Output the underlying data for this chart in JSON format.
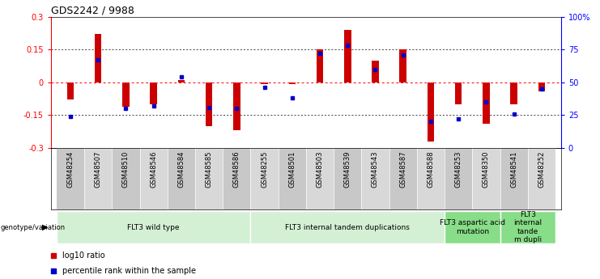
{
  "title": "GDS2242 / 9988",
  "samples": [
    "GSM48254",
    "GSM48507",
    "GSM48510",
    "GSM48546",
    "GSM48584",
    "GSM48585",
    "GSM48586",
    "GSM48255",
    "GSM48501",
    "GSM48503",
    "GSM48539",
    "GSM48543",
    "GSM48587",
    "GSM48588",
    "GSM48253",
    "GSM48350",
    "GSM48541",
    "GSM48252"
  ],
  "log10_ratio": [
    -0.08,
    0.22,
    -0.11,
    -0.1,
    0.01,
    -0.2,
    -0.22,
    -0.01,
    -0.01,
    0.15,
    0.24,
    0.1,
    0.15,
    -0.27,
    -0.1,
    -0.19,
    -0.1,
    -0.04
  ],
  "percentile_rank": [
    24,
    67,
    30,
    32,
    54,
    31,
    30,
    46,
    38,
    72,
    78,
    60,
    71,
    20,
    22,
    35,
    26,
    45
  ],
  "groups": [
    {
      "label": "FLT3 wild type",
      "start": 0,
      "end": 7
    },
    {
      "label": "FLT3 internal tandem duplications",
      "start": 7,
      "end": 14
    },
    {
      "label": "FLT3 aspartic acid\nmutation",
      "start": 14,
      "end": 16
    },
    {
      "label": "FLT3\ninternal\ntande\nm dupli",
      "start": 16,
      "end": 18
    }
  ],
  "group_colors": [
    "#d4f0d4",
    "#d4f0d4",
    "#88dd88",
    "#88dd88"
  ],
  "bar_color": "#cc0000",
  "dot_color": "#0000cc",
  "ylim_left": [
    -0.3,
    0.3
  ],
  "ylim_right": [
    0,
    100
  ],
  "yticks_left": [
    -0.3,
    -0.15,
    0.0,
    0.15,
    0.3
  ],
  "ytick_labels_left": [
    "-0.3",
    "-0.15",
    "0",
    "0.15",
    "0.3"
  ],
  "yticks_right": [
    0,
    25,
    50,
    75,
    100
  ],
  "ytick_labels_right": [
    "0",
    "25",
    "50",
    "75",
    "100%"
  ],
  "hlines_dotted": [
    0.15,
    -0.15
  ],
  "legend_items": [
    "log10 ratio",
    "percentile rank within the sample"
  ],
  "legend_colors": [
    "#cc0000",
    "#0000cc"
  ],
  "col_bg_even": "#c8c8c8",
  "col_bg_odd": "#d8d8d8"
}
